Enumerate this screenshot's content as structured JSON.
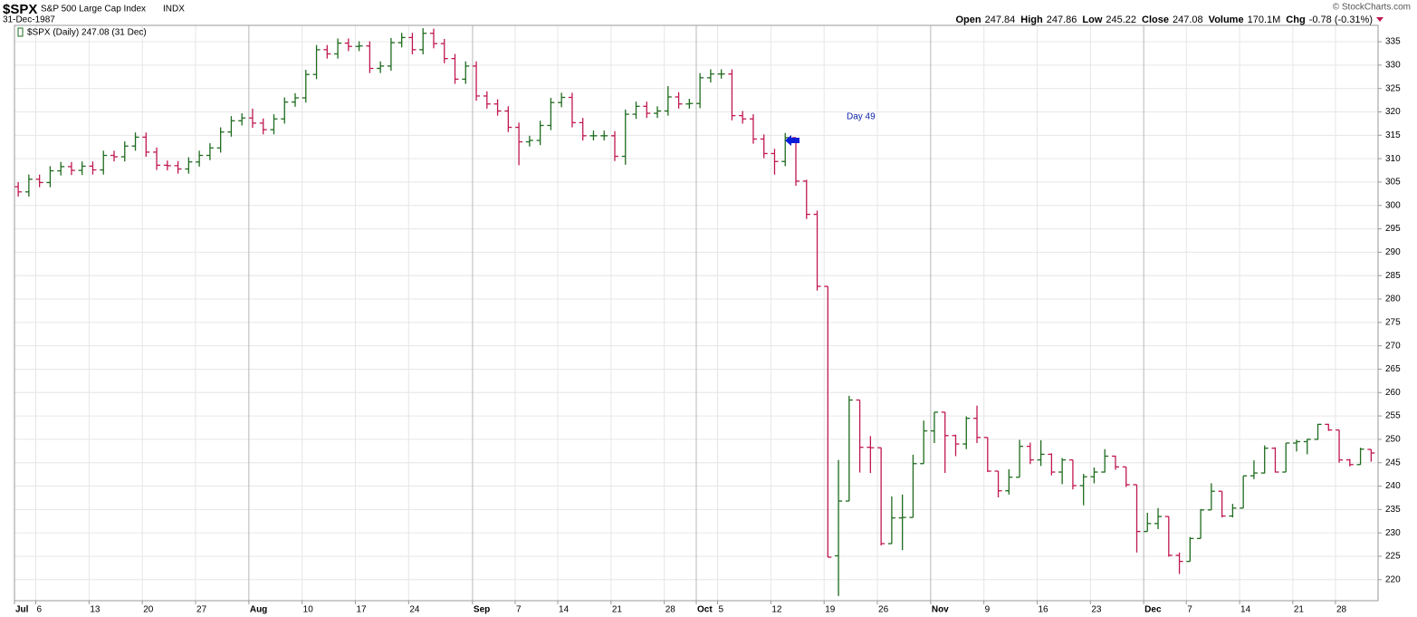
{
  "header": {
    "symbol": "$SPX",
    "name": "S&P 500 Large Cap Index",
    "exchange": "INDX",
    "date": "31-Dec-1987",
    "quote": [
      {
        "label": "Open",
        "value": 247.84
      },
      {
        "label": "High",
        "value": 247.86
      },
      {
        "label": "Low",
        "value": 245.22
      },
      {
        "label": "Close",
        "value": 247.08
      },
      {
        "label": "Volume",
        "value": "170.1M"
      },
      {
        "label": "Chg",
        "value": "-0.78 (-0.31%)"
      }
    ],
    "credit": "© StockCharts.com"
  },
  "chart_data": {
    "type": "ohlc",
    "legend": "$SPX (Daily) 247.08 (31 Dec)",
    "annotation": "Day 49",
    "up_color": "#1e6b1e",
    "down_color": "#c0184f",
    "grid": true,
    "x": [
      "1987-07-01",
      "1987-07-02",
      "1987-07-06",
      "1987-07-07",
      "1987-07-08",
      "1987-07-09",
      "1987-07-10",
      "1987-07-13",
      "1987-07-14",
      "1987-07-15",
      "1987-07-16",
      "1987-07-17",
      "1987-07-20",
      "1987-07-21",
      "1987-07-22",
      "1987-07-23",
      "1987-07-24",
      "1987-07-27",
      "1987-07-28",
      "1987-07-29",
      "1987-07-30",
      "1987-07-31",
      "1987-08-03",
      "1987-08-04",
      "1987-08-05",
      "1987-08-06",
      "1987-08-07",
      "1987-08-10",
      "1987-08-11",
      "1987-08-12",
      "1987-08-13",
      "1987-08-14",
      "1987-08-17",
      "1987-08-18",
      "1987-08-19",
      "1987-08-20",
      "1987-08-21",
      "1987-08-24",
      "1987-08-25",
      "1987-08-26",
      "1987-08-27",
      "1987-08-28",
      "1987-08-31",
      "1987-09-01",
      "1987-09-02",
      "1987-09-03",
      "1987-09-04",
      "1987-09-08",
      "1987-09-09",
      "1987-09-10",
      "1987-09-11",
      "1987-09-14",
      "1987-09-15",
      "1987-09-16",
      "1987-09-17",
      "1987-09-18",
      "1987-09-21",
      "1987-09-22",
      "1987-09-23",
      "1987-09-24",
      "1987-09-25",
      "1987-09-28",
      "1987-09-29",
      "1987-09-30",
      "1987-10-01",
      "1987-10-02",
      "1987-10-05",
      "1987-10-06",
      "1987-10-07",
      "1987-10-08",
      "1987-10-09",
      "1987-10-12",
      "1987-10-13",
      "1987-10-14",
      "1987-10-15",
      "1987-10-16",
      "1987-10-19",
      "1987-10-20",
      "1987-10-21",
      "1987-10-22",
      "1987-10-23",
      "1987-10-26",
      "1987-10-27",
      "1987-10-28",
      "1987-10-29",
      "1987-10-30",
      "1987-11-02",
      "1987-11-03",
      "1987-11-04",
      "1987-11-05",
      "1987-11-06",
      "1987-11-09",
      "1987-11-10",
      "1987-11-11",
      "1987-11-12",
      "1987-11-13",
      "1987-11-16",
      "1987-11-17",
      "1987-11-18",
      "1987-11-19",
      "1987-11-20",
      "1987-11-23",
      "1987-11-24",
      "1987-11-25",
      "1987-11-27",
      "1987-11-30",
      "1987-12-01",
      "1987-12-02",
      "1987-12-03",
      "1987-12-04",
      "1987-12-07",
      "1987-12-08",
      "1987-12-09",
      "1987-12-10",
      "1987-12-11",
      "1987-12-14",
      "1987-12-15",
      "1987-12-16",
      "1987-12-17",
      "1987-12-18",
      "1987-12-21",
      "1987-12-22",
      "1987-12-23",
      "1987-12-24",
      "1987-12-28",
      "1987-12-29",
      "1987-12-30",
      "1987-12-31"
    ],
    "open": [
      304.0,
      302.9,
      305.6,
      304.9,
      307.4,
      308.3,
      307.5,
      308.4,
      307.6,
      310.7,
      310.4,
      312.7,
      314.6,
      311.4,
      308.6,
      308.5,
      307.8,
      309.3,
      310.7,
      312.3,
      315.7,
      318.1,
      318.7,
      317.6,
      316.2,
      318.5,
      322.1,
      323.0,
      328.0,
      333.3,
      332.4,
      334.7,
      334.0,
      334.1,
      329.3,
      329.8,
      334.8,
      335.9,
      333.3,
      336.8,
      334.6,
      331.4,
      327.0,
      329.8,
      323.4,
      321.7,
      320.2,
      316.7,
      313.6,
      313.9,
      317.1,
      322.0,
      323.1,
      317.7,
      314.9,
      314.9,
      314.9,
      310.5,
      319.5,
      321.2,
      319.7,
      320.2,
      323.2,
      321.7,
      321.8,
      327.3,
      328.1,
      328.1,
      319.2,
      318.5,
      314.2,
      311.1,
      309.4,
      314.5,
      305.2,
      298.1,
      282.7,
      225.1,
      236.8,
      258.4,
      248.3,
      248.2,
      227.7,
      233.2,
      233.3,
      244.8,
      251.8,
      255.8,
      250.8,
      249.0,
      254.5,
      250.4,
      243.2,
      239.0,
      241.9,
      248.5,
      245.6,
      246.8,
      243.0,
      245.6,
      240.1,
      242.0,
      243.0,
      246.4,
      244.1,
      240.3,
      230.3,
      232.0,
      233.5,
      225.2,
      223.9,
      228.8,
      234.9,
      238.9,
      233.6,
      235.3,
      242.2,
      242.8,
      248.1,
      243.0,
      249.2,
      249.5,
      250.0,
      253.2,
      252.0,
      245.6,
      244.6,
      247.84
    ],
    "high": [
      305.0,
      306.6,
      306.6,
      308.4,
      309.3,
      309.3,
      309.4,
      309.4,
      311.7,
      311.7,
      313.7,
      315.6,
      315.6,
      312.4,
      309.6,
      309.5,
      310.3,
      311.7,
      313.3,
      316.7,
      319.1,
      319.7,
      320.7,
      318.6,
      319.5,
      323.1,
      324.0,
      329.0,
      334.3,
      334.3,
      335.7,
      335.7,
      335.1,
      335.1,
      330.8,
      335.8,
      336.9,
      336.9,
      337.9,
      337.8,
      335.6,
      332.4,
      330.8,
      330.8,
      324.4,
      322.7,
      321.2,
      317.7,
      314.9,
      318.1,
      323.0,
      324.1,
      324.1,
      318.7,
      316.0,
      316.0,
      315.9,
      320.5,
      322.2,
      322.2,
      321.2,
      325.5,
      324.2,
      322.8,
      328.3,
      329.1,
      329.1,
      329.1,
      320.2,
      319.5,
      315.2,
      312.1,
      315.5,
      314.5,
      305.5,
      298.9,
      282.7,
      245.6,
      259.3,
      258.4,
      250.7,
      248.2,
      237.8,
      238.2,
      246.7,
      254.0,
      255.8,
      255.8,
      251.0,
      254.9,
      257.2,
      250.4,
      243.2,
      243.6,
      249.9,
      249.3,
      249.8,
      247.0,
      246.0,
      245.6,
      242.6,
      244.0,
      247.9,
      246.5,
      244.1,
      240.3,
      234.3,
      235.3,
      233.5,
      225.8,
      229.1,
      235.1,
      240.6,
      238.9,
      236.2,
      242.2,
      245.5,
      248.7,
      248.3,
      249.2,
      249.9,
      250.1,
      253.3,
      253.3,
      252.0,
      245.8,
      248.2,
      247.86
    ],
    "low": [
      301.9,
      301.9,
      303.9,
      303.9,
      306.4,
      306.5,
      306.5,
      306.6,
      306.6,
      309.4,
      309.4,
      311.7,
      310.4,
      307.6,
      307.5,
      306.8,
      306.8,
      308.3,
      309.7,
      311.3,
      314.7,
      317.1,
      316.6,
      315.2,
      315.2,
      317.5,
      321.1,
      322.0,
      327.0,
      331.4,
      331.4,
      333.0,
      333.0,
      328.3,
      328.3,
      328.8,
      333.8,
      332.3,
      332.3,
      333.6,
      330.4,
      326.0,
      326.0,
      322.4,
      320.7,
      319.2,
      315.7,
      308.6,
      312.6,
      312.9,
      316.1,
      321.0,
      316.7,
      313.9,
      313.9,
      313.9,
      309.5,
      308.7,
      318.5,
      318.7,
      318.7,
      319.2,
      320.7,
      320.7,
      320.8,
      326.3,
      327.1,
      318.2,
      317.5,
      313.2,
      310.1,
      306.6,
      308.4,
      304.2,
      297.1,
      281.8,
      224.8,
      216.5,
      236.8,
      242.9,
      242.8,
      227.3,
      227.7,
      226.3,
      233.3,
      244.8,
      249.2,
      242.8,
      246.4,
      247.9,
      249.2,
      243.0,
      237.6,
      238.2,
      241.9,
      244.7,
      244.3,
      242.3,
      240.4,
      239.3,
      235.9,
      240.6,
      242.9,
      243.5,
      239.8,
      225.8,
      230.3,
      230.8,
      224.9,
      221.2,
      223.9,
      228.8,
      234.9,
      233.3,
      233.3,
      235.3,
      241.5,
      242.7,
      242.9,
      243.0,
      247.4,
      246.8,
      249.9,
      251.8,
      245.0,
      244.2,
      244.6,
      245.22
    ],
    "close": [
      302.9,
      305.6,
      304.9,
      307.4,
      308.3,
      307.5,
      308.4,
      307.6,
      310.7,
      310.4,
      312.7,
      314.6,
      311.4,
      308.6,
      308.5,
      307.8,
      309.3,
      310.7,
      312.3,
      315.7,
      318.1,
      318.7,
      317.6,
      316.2,
      318.5,
      322.1,
      323.0,
      328.0,
      333.3,
      332.4,
      334.7,
      334.0,
      334.1,
      329.3,
      329.8,
      334.8,
      335.9,
      333.3,
      336.8,
      334.6,
      331.4,
      327.0,
      329.8,
      323.4,
      321.7,
      320.2,
      316.7,
      313.6,
      313.9,
      317.1,
      322.0,
      323.1,
      317.7,
      314.9,
      314.9,
      314.9,
      310.5,
      319.5,
      321.2,
      319.7,
      320.2,
      323.2,
      321.7,
      321.8,
      327.3,
      328.1,
      328.1,
      319.2,
      318.5,
      314.2,
      311.1,
      309.4,
      314.5,
      305.2,
      298.1,
      282.7,
      224.8,
      236.8,
      258.4,
      248.3,
      248.2,
      227.7,
      233.2,
      233.3,
      244.8,
      251.8,
      255.8,
      250.8,
      249.0,
      254.5,
      250.4,
      243.2,
      239.0,
      241.9,
      248.5,
      245.6,
      246.8,
      243.0,
      245.6,
      240.1,
      242.0,
      243.0,
      246.4,
      244.1,
      240.3,
      230.3,
      232.0,
      233.5,
      225.2,
      223.9,
      228.8,
      234.9,
      238.9,
      233.6,
      235.3,
      242.2,
      242.8,
      248.1,
      243.0,
      249.2,
      249.5,
      250.0,
      253.2,
      252.0,
      245.6,
      244.6,
      247.9,
      247.08
    ],
    "ylim": [
      215.5,
      338.5
    ],
    "yticks": [
      220,
      225,
      230,
      235,
      240,
      245,
      250,
      255,
      260,
      265,
      270,
      275,
      280,
      285,
      290,
      295,
      300,
      305,
      310,
      315,
      320,
      325,
      330,
      335
    ],
    "xticks": [
      {
        "value": "1987-07-01",
        "label": "Jul"
      },
      {
        "value": "1987-07-06",
        "label": "6"
      },
      {
        "value": "1987-07-13",
        "label": "13"
      },
      {
        "value": "1987-07-20",
        "label": "20"
      },
      {
        "value": "1987-07-27",
        "label": "27"
      },
      {
        "value": "1987-08-03",
        "label": "Aug"
      },
      {
        "value": "1987-08-10",
        "label": "10"
      },
      {
        "value": "1987-08-17",
        "label": "17"
      },
      {
        "value": "1987-08-24",
        "label": "24"
      },
      {
        "value": "1987-09-01",
        "label": "Sep"
      },
      {
        "value": "1987-09-07",
        "label": "7"
      },
      {
        "value": "1987-09-14",
        "label": "14"
      },
      {
        "value": "1987-09-21",
        "label": "21"
      },
      {
        "value": "1987-09-28",
        "label": "28"
      },
      {
        "value": "1987-10-01",
        "label": "Oct"
      },
      {
        "value": "1987-10-05",
        "label": "5"
      },
      {
        "value": "1987-10-12",
        "label": "12"
      },
      {
        "value": "1987-10-19",
        "label": "19"
      },
      {
        "value": "1987-10-26",
        "label": "26"
      },
      {
        "value": "1987-11-02",
        "label": "Nov"
      },
      {
        "value": "1987-11-09",
        "label": "9"
      },
      {
        "value": "1987-11-16",
        "label": "16"
      },
      {
        "value": "1987-11-23",
        "label": "23"
      },
      {
        "value": "1987-12-01",
        "label": "Dec"
      },
      {
        "value": "1987-12-07",
        "label": "7"
      },
      {
        "value": "1987-12-14",
        "label": "14"
      },
      {
        "value": "1987-12-21",
        "label": "21"
      },
      {
        "value": "1987-12-28",
        "label": "28"
      }
    ]
  }
}
